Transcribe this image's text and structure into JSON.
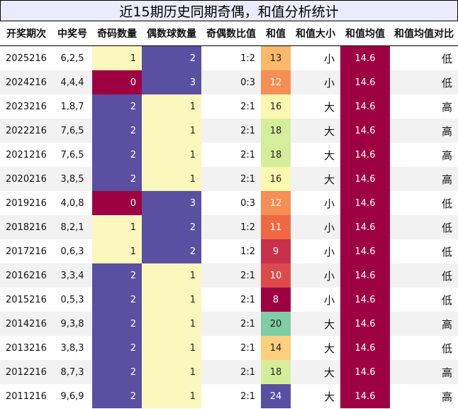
{
  "title": "近15期历史同期奇偶，和值分析统计",
  "headers": [
    "开奖期次",
    "中奖号",
    "奇码数量",
    "偶数球数量",
    "奇偶数比值",
    "和值",
    "和值大小",
    "和值均值",
    "和值均值对比"
  ],
  "colors": {
    "odd_even_high": "#5a4fa0",
    "odd_even_low": "#fbf8be",
    "odd_even_zero": "#9e0142",
    "sum_8": "#9e0142",
    "sum_9": "#c8304b",
    "sum_10": "#dd4a4c",
    "sum_11": "#f06944",
    "sum_12": "#f78e53",
    "sum_13": "#fdb86b",
    "sum_14": "#fdcf7e",
    "sum_16": "#fbf8b0",
    "sum_18": "#d5ee9b",
    "sum_20": "#7fcca5",
    "sum_24": "#5a4fa0",
    "avg": "#9e0142"
  },
  "chart_data": {
    "type": "table",
    "title": "近15期历史同期奇偶，和值分析统计",
    "columns": [
      "开奖期次",
      "中奖号",
      "奇码数量",
      "偶数球数量",
      "奇偶数比值",
      "和值",
      "和值大小",
      "和值均值",
      "和值均值对比"
    ],
    "rows": [
      [
        "2025216",
        "6,2,5",
        1,
        2,
        "1:2",
        13,
        "小",
        14.6,
        "低"
      ],
      [
        "2024216",
        "4,4,4",
        0,
        3,
        "0:3",
        12,
        "小",
        14.6,
        "低"
      ],
      [
        "2023216",
        "1,8,7",
        2,
        1,
        "2:1",
        16,
        "大",
        14.6,
        "高"
      ],
      [
        "2022216",
        "7,6,5",
        2,
        1,
        "2:1",
        18,
        "大",
        14.6,
        "高"
      ],
      [
        "2021216",
        "7,6,5",
        2,
        1,
        "2:1",
        18,
        "大",
        14.6,
        "高"
      ],
      [
        "2020216",
        "3,8,5",
        2,
        1,
        "2:1",
        16,
        "大",
        14.6,
        "高"
      ],
      [
        "2019216",
        "4,0,8",
        0,
        3,
        "0:3",
        12,
        "小",
        14.6,
        "低"
      ],
      [
        "2018216",
        "8,2,1",
        1,
        2,
        "1:2",
        11,
        "小",
        14.6,
        "低"
      ],
      [
        "2017216",
        "0,6,3",
        1,
        2,
        "1:2",
        9,
        "小",
        14.6,
        "低"
      ],
      [
        "2016216",
        "3,3,4",
        2,
        1,
        "2:1",
        10,
        "小",
        14.6,
        "低"
      ],
      [
        "2015216",
        "0,5,3",
        2,
        1,
        "2:1",
        8,
        "小",
        14.6,
        "低"
      ],
      [
        "2014216",
        "9,3,8",
        2,
        1,
        "2:1",
        20,
        "大",
        14.6,
        "高"
      ],
      [
        "2013216",
        "3,8,3",
        2,
        1,
        "2:1",
        14,
        "大",
        14.6,
        "低"
      ],
      [
        "2012216",
        "8,7,3",
        2,
        1,
        "2:1",
        18,
        "大",
        14.6,
        "高"
      ],
      [
        "2011216",
        "9,6,9",
        2,
        1,
        "2:1",
        24,
        "大",
        14.6,
        "高"
      ]
    ]
  }
}
